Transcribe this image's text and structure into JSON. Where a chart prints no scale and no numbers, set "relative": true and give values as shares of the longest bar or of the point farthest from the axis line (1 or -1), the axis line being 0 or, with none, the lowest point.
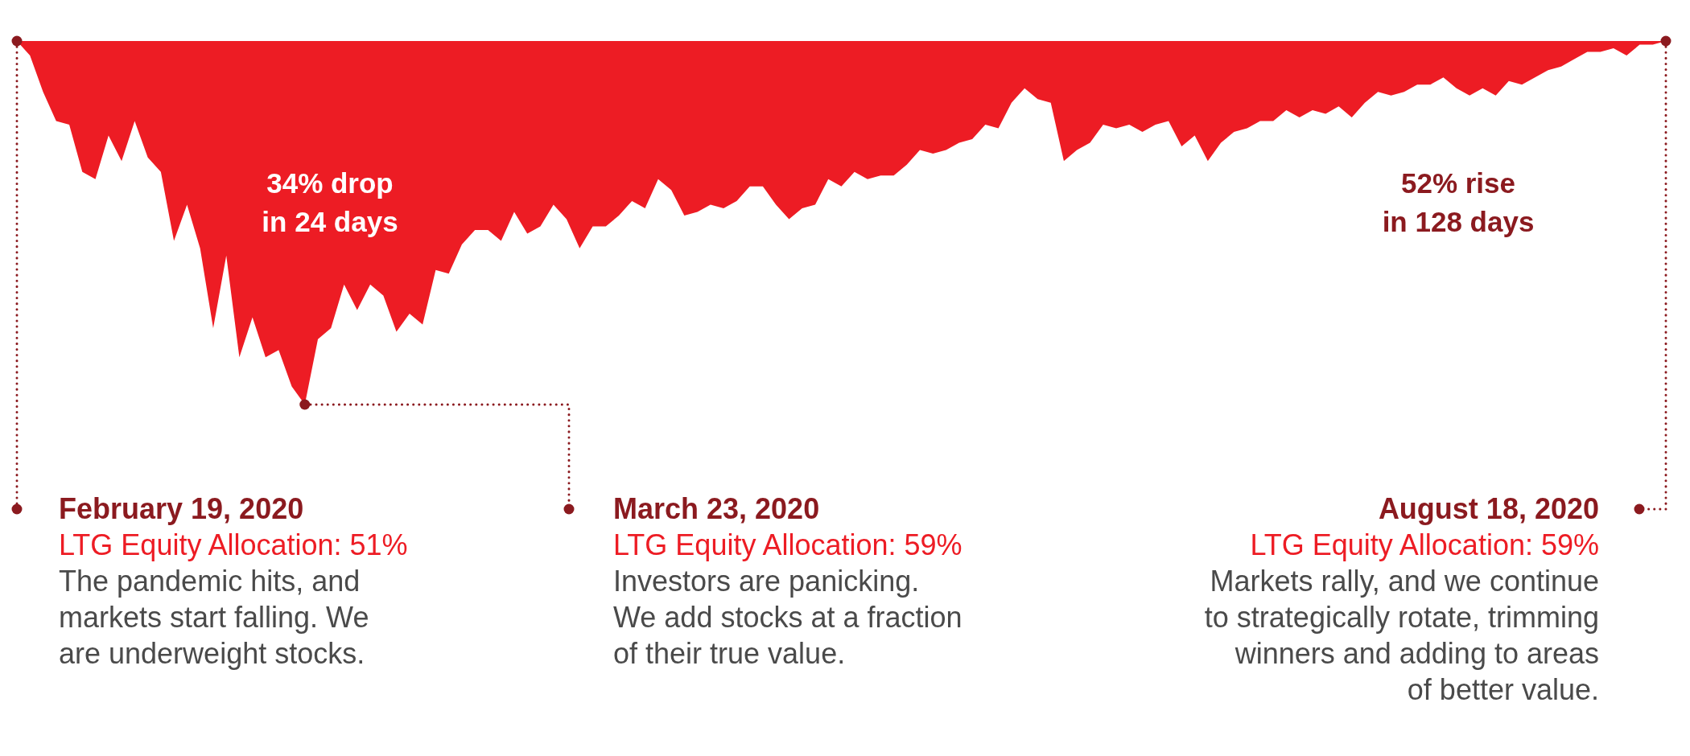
{
  "chart_data": {
    "type": "area",
    "relative": true,
    "color": "#ed1c24",
    "categories": [
      null,
      null,
      null,
      null,
      null,
      null,
      null,
      null,
      null,
      null,
      null,
      null,
      null,
      null,
      null,
      null,
      null,
      null,
      null,
      null,
      null,
      null,
      null,
      null,
      null,
      null,
      null,
      null,
      null,
      null,
      null,
      null,
      null,
      null,
      null,
      null,
      null,
      null,
      null,
      null,
      null,
      null,
      null,
      null,
      null,
      null,
      null,
      null,
      null,
      null,
      null,
      null,
      null,
      null,
      null,
      null,
      null,
      null,
      null,
      null,
      null,
      null,
      null,
      null,
      null,
      null,
      null,
      null,
      null,
      null,
      null,
      null,
      null,
      null,
      null,
      null,
      null,
      null,
      null,
      null,
      null,
      null,
      null,
      null,
      null,
      null,
      null,
      null,
      null,
      null,
      null,
      null,
      null,
      null,
      null,
      null,
      null,
      null,
      null,
      null,
      null,
      null,
      null,
      null,
      null,
      null,
      null,
      null,
      null,
      null,
      null,
      null,
      null,
      null,
      null,
      null,
      null,
      null,
      null,
      null,
      null,
      null,
      null,
      null,
      null,
      null,
      null
    ],
    "values": [
      0,
      -0.04,
      -0.14,
      -0.22,
      -0.23,
      -0.36,
      -0.38,
      -0.26,
      -0.33,
      -0.22,
      -0.32,
      -0.36,
      -0.55,
      -0.45,
      -0.57,
      -0.79,
      -0.59,
      -0.87,
      -0.76,
      -0.87,
      -0.85,
      -0.95,
      -1,
      -0.82,
      -0.79,
      -0.67,
      -0.74,
      -0.67,
      -0.7,
      -0.8,
      -0.75,
      -0.78,
      -0.63,
      -0.64,
      -0.56,
      -0.52,
      -0.52,
      -0.55,
      -0.47,
      -0.53,
      -0.51,
      -0.45,
      -0.49,
      -0.57,
      -0.51,
      -0.51,
      -0.48,
      -0.44,
      -0.46,
      -0.38,
      -0.41,
      -0.48,
      -0.47,
      -0.45,
      -0.46,
      -0.44,
      -0.4,
      -0.4,
      -0.45,
      -0.49,
      -0.46,
      -0.45,
      -0.38,
      -0.4,
      -0.36,
      -0.38,
      -0.37,
      -0.37,
      -0.34,
      -0.3,
      -0.31,
      -0.3,
      -0.28,
      -0.27,
      -0.23,
      -0.24,
      -0.17,
      -0.13,
      -0.16,
      -0.17,
      -0.33,
      -0.3,
      -0.28,
      -0.23,
      -0.24,
      -0.23,
      -0.25,
      -0.23,
      -0.22,
      -0.29,
      -0.26,
      -0.33,
      -0.28,
      -0.25,
      -0.24,
      -0.22,
      -0.22,
      -0.19,
      -0.21,
      -0.19,
      -0.2,
      -0.18,
      -0.21,
      -0.17,
      -0.14,
      -0.15,
      -0.14,
      -0.12,
      -0.12,
      -0.1,
      -0.13,
      -0.15,
      -0.13,
      -0.15,
      -0.11,
      -0.12,
      -0.1,
      -0.08,
      -0.07,
      -0.05,
      -0.03,
      -0.03,
      -0.02,
      -0.04,
      -0.01,
      -0.01,
      0
    ],
    "annotations": [
      "34% drop\nin 24 days",
      "52% rise\nin 128 days",
      "February 19, 2020\nLTG Equity Allocation: 51%\nThe pandemic hits, and\nmarkets start falling. We\nare underweight stocks.",
      "March 23, 2020\nLTG Equity Allocation: 59%\nInvestors are panicking.\nWe add stocks at a fraction\nof their true value.",
      "August 18, 2020\nLTG Equity Allocation: 59%\nMarkets rally, and we continue\nto strategically rotate, trimming\nwinners and adding to areas\nof better value."
    ]
  }
}
